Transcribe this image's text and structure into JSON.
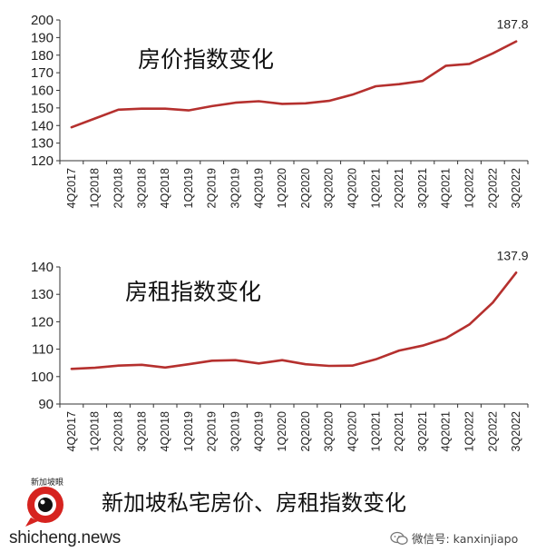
{
  "chart_data": [
    {
      "type": "line",
      "title": "房价指数变化",
      "ylim": [
        120,
        200
      ],
      "yticks": [
        120,
        130,
        140,
        150,
        160,
        170,
        180,
        190,
        200
      ],
      "categories": [
        "4Q2017",
        "1Q2018",
        "2Q2018",
        "3Q2018",
        "4Q2018",
        "1Q2019",
        "2Q2019",
        "3Q2019",
        "4Q2019",
        "1Q2020",
        "2Q2020",
        "3Q2020",
        "4Q2020",
        "1Q2021",
        "2Q2021",
        "3Q2021",
        "4Q2021",
        "1Q2022",
        "2Q2022",
        "3Q2022"
      ],
      "series": [
        {
          "values": [
            139.0,
            144.0,
            149.0,
            149.6,
            149.6,
            148.6,
            151.0,
            153.0,
            153.8,
            152.3,
            152.6,
            154.0,
            157.5,
            162.3,
            163.5,
            165.3,
            174.0,
            175.0,
            181.0,
            187.8
          ]
        }
      ],
      "peak_label": "187.8",
      "grid": false,
      "line_color": "#b5302e"
    },
    {
      "type": "line",
      "title": "房租指数变化",
      "ylim": [
        90,
        140
      ],
      "yticks": [
        90,
        100,
        110,
        120,
        130,
        140
      ],
      "categories": [
        "4Q2017",
        "1Q2018",
        "2Q2018",
        "3Q2018",
        "4Q2018",
        "1Q2019",
        "2Q2019",
        "3Q2019",
        "4Q2019",
        "1Q2020",
        "2Q2020",
        "3Q2020",
        "4Q2020",
        "1Q2021",
        "2Q2021",
        "3Q2021",
        "4Q2021",
        "1Q2022",
        "2Q2022",
        "3Q2022"
      ],
      "series": [
        {
          "values": [
            102.8,
            103.2,
            104.0,
            104.3,
            103.3,
            104.5,
            105.8,
            106.0,
            104.8,
            106.0,
            104.5,
            103.9,
            104.0,
            106.3,
            109.5,
            111.3,
            114.0,
            119.0,
            127.0,
            137.9
          ]
        }
      ],
      "peak_label": "137.9",
      "grid": false,
      "line_color": "#b5302e"
    }
  ],
  "caption": "新加坡私宅房价、房租指数变化",
  "logo": {
    "badge_text": "新加坡眼",
    "name": "shicheng.news"
  },
  "wechat": {
    "text": "微信号: kanxinjiapo"
  }
}
